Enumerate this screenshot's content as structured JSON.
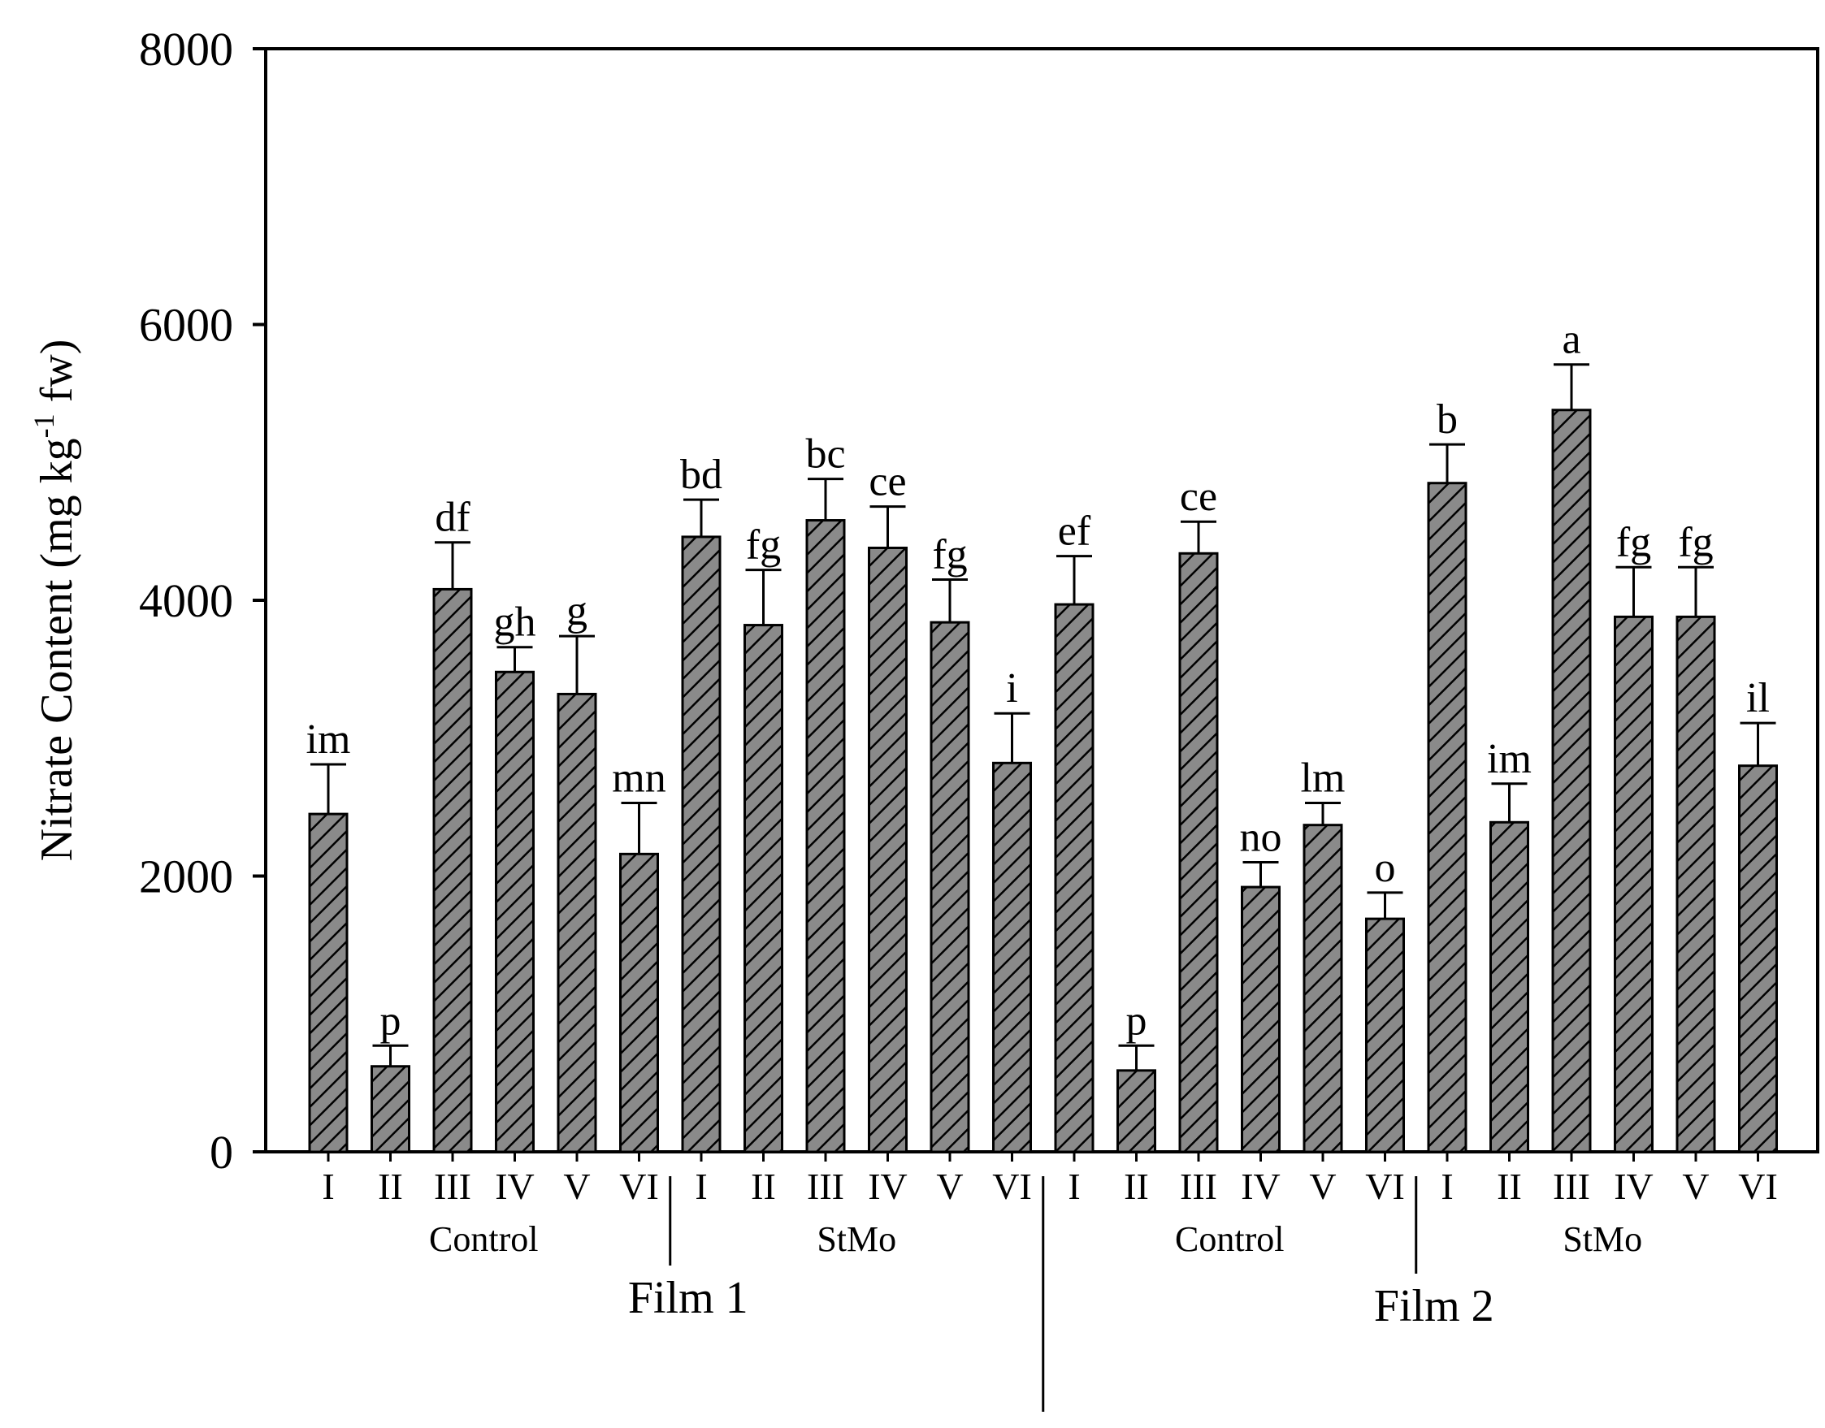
{
  "chart_data": {
    "type": "bar",
    "ylabel_main": "Nitrate Content (mg kg",
    "ylabel_sup": "-1",
    "ylabel_tail": " fw)",
    "ylim": [
      0,
      8000
    ],
    "yticks": [
      "0",
      "2000",
      "4000",
      "6000",
      "8000"
    ],
    "ytick_values": [
      0,
      2000,
      4000,
      6000,
      8000
    ],
    "colors": {
      "bar_fill": "#8a8a8a",
      "bar_stroke": "#000000",
      "hatch": "#000000"
    },
    "categories": [
      "I",
      "II",
      "III",
      "IV",
      "V",
      "VI",
      "I",
      "II",
      "III",
      "IV",
      "V",
      "VI",
      "I",
      "II",
      "III",
      "IV",
      "V",
      "VI",
      "I",
      "II",
      "III",
      "IV",
      "V",
      "VI"
    ],
    "values": [
      2450,
      620,
      4080,
      3480,
      3320,
      2160,
      4460,
      3820,
      4580,
      4380,
      3840,
      2820,
      3970,
      590,
      4340,
      1920,
      2370,
      1690,
      4850,
      2390,
      5380,
      3880,
      3880,
      2800
    ],
    "errors": [
      360,
      150,
      340,
      180,
      420,
      370,
      270,
      400,
      300,
      300,
      310,
      360,
      350,
      180,
      230,
      180,
      160,
      190,
      280,
      280,
      330,
      360,
      360,
      310
    ],
    "letters": [
      "im",
      "p",
      "df",
      "gh",
      "g",
      "mn",
      "bd",
      "fg",
      "bc",
      "ce",
      "fg",
      "i",
      "ef",
      "p",
      "ce",
      "no",
      "lm",
      "o",
      "b",
      "im",
      "a",
      "fg",
      "fg",
      "il"
    ],
    "groups": [
      {
        "label": "Control",
        "start": 0,
        "end": 5
      },
      {
        "label": "StMo",
        "start": 6,
        "end": 11
      },
      {
        "label": "Control",
        "start": 12,
        "end": 17
      },
      {
        "label": "StMo",
        "start": 18,
        "end": 23
      }
    ],
    "films": [
      {
        "label": "Film 1"
      },
      {
        "label": "Film 2"
      }
    ]
  }
}
